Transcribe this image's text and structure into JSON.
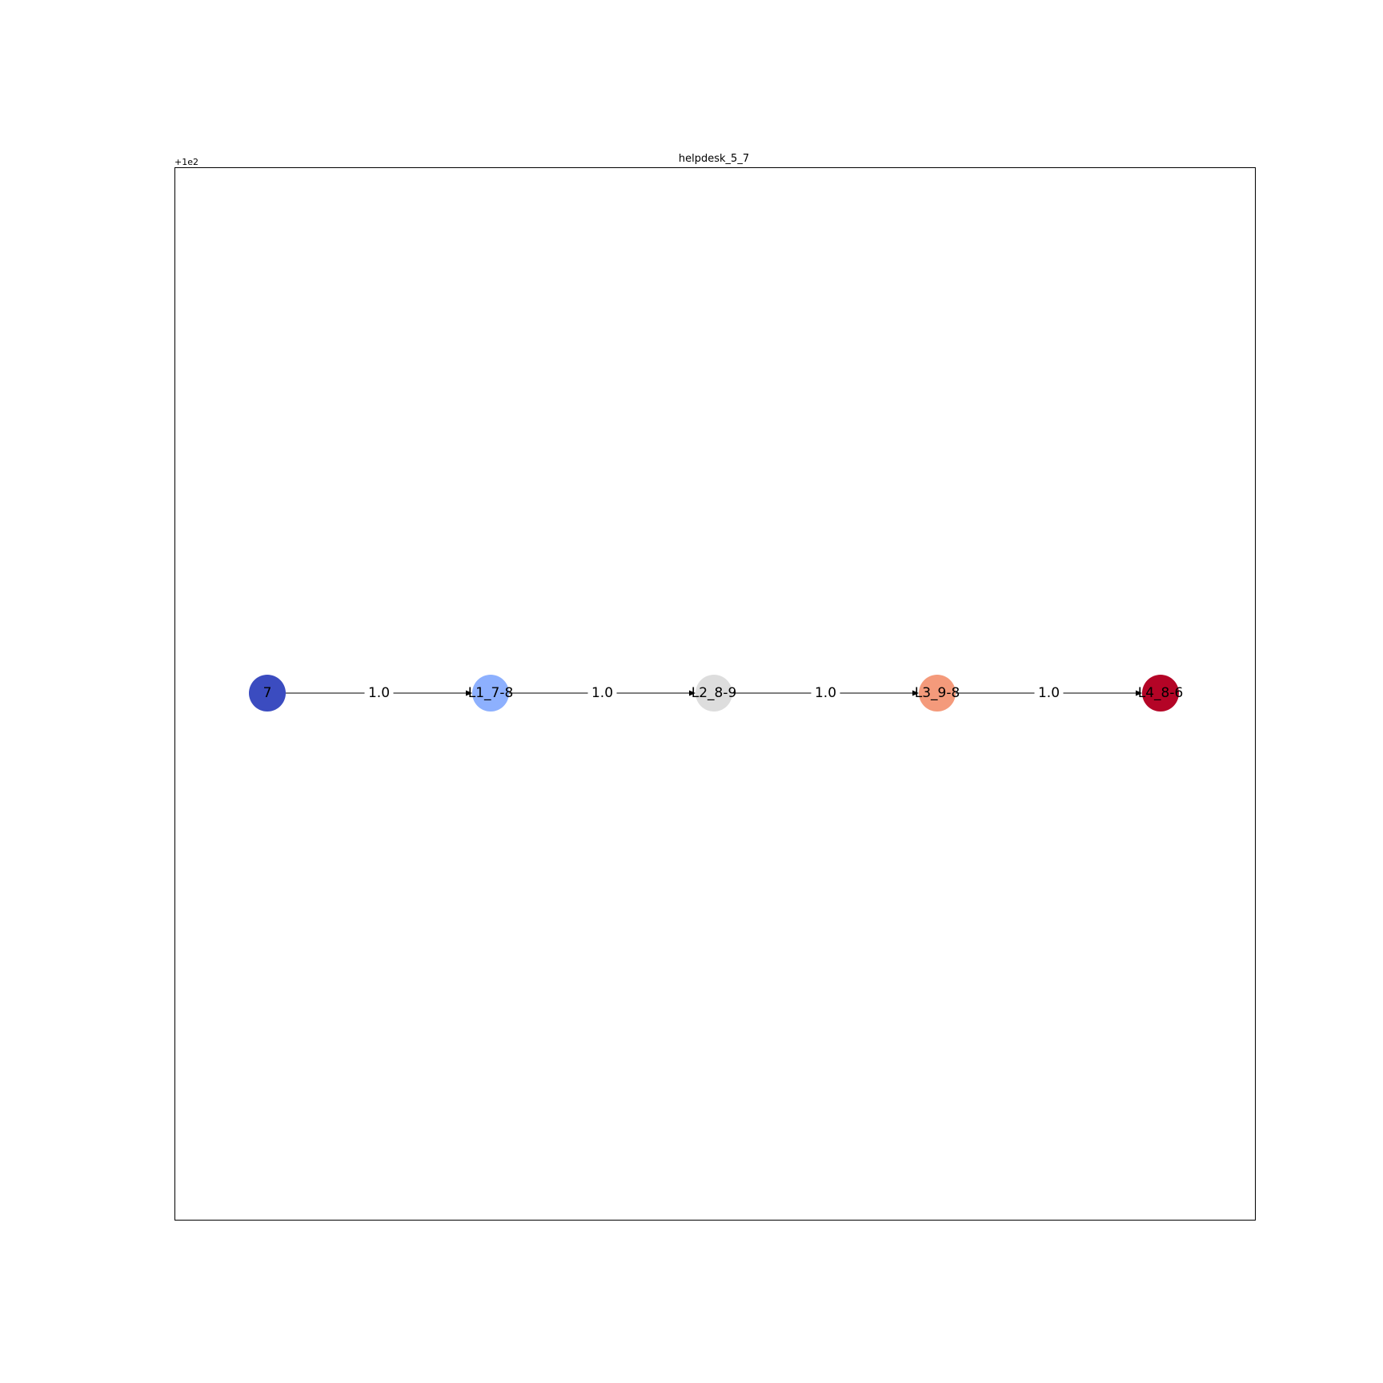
{
  "figure": {
    "title": "helpdesk_5_7",
    "axis_offset_label": "+1e2"
  },
  "graph": {
    "nodes": [
      {
        "id": "n7",
        "label": "7",
        "color": "#3b4cc0"
      },
      {
        "id": "nL1",
        "label": "L1_7-8",
        "color": "#8db0fe"
      },
      {
        "id": "nL2",
        "label": "L2_8-9",
        "color": "#dddddd"
      },
      {
        "id": "nL3",
        "label": "L3_9-8",
        "color": "#f49a7b"
      },
      {
        "id": "nL4",
        "label": "L4_8-6",
        "color": "#b40426"
      }
    ],
    "edges": [
      {
        "from": "n7",
        "to": "nL1",
        "label": "1.0"
      },
      {
        "from": "nL1",
        "to": "nL2",
        "label": "1.0"
      },
      {
        "from": "nL2",
        "to": "nL3",
        "label": "1.0"
      },
      {
        "from": "nL3",
        "to": "nL4",
        "label": "1.0"
      }
    ]
  }
}
